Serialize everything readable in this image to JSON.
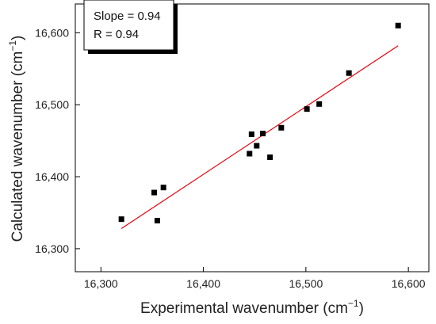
{
  "chart_data": {
    "type": "scatter",
    "xlabel": "Experimental wavenumber (cm",
    "xlabel_sup": "−1",
    "xlabel_end": ")",
    "ylabel": "Calculated wavenumber (cm",
    "ylabel_sup": "−1",
    "ylabel_end": ")",
    "xlim": [
      16275,
      16620
    ],
    "ylim": [
      16268,
      16640
    ],
    "x_ticks": [
      16300,
      16400,
      16500,
      16600
    ],
    "x_tick_labels": [
      "16,300",
      "16,400",
      "16,500",
      "16,600"
    ],
    "y_ticks": [
      16300,
      16400,
      16500,
      16600
    ],
    "y_tick_labels": [
      "16,300",
      "16,400",
      "16,500",
      "16,600"
    ],
    "grid": false,
    "legend": {
      "placement": "top-left",
      "lines": [
        "Slope = 0.94",
        "R = 0.94"
      ]
    },
    "series": [
      {
        "marker": "square",
        "color": "#000000",
        "points": [
          [
            16320,
            16341
          ],
          [
            16352,
            16378
          ],
          [
            16355,
            16339
          ],
          [
            16361,
            16385
          ],
          [
            16445,
            16432
          ],
          [
            16447,
            16459
          ],
          [
            16452,
            16443
          ],
          [
            16458,
            16460
          ],
          [
            16465,
            16427
          ],
          [
            16476,
            16468
          ],
          [
            16501,
            16494
          ],
          [
            16513,
            16501
          ],
          [
            16542,
            16544
          ],
          [
            16590,
            16610
          ]
        ]
      }
    ],
    "fit_line": {
      "color": "#e8000b",
      "points": [
        [
          16320,
          16328
        ],
        [
          16590,
          16582
        ]
      ]
    }
  }
}
